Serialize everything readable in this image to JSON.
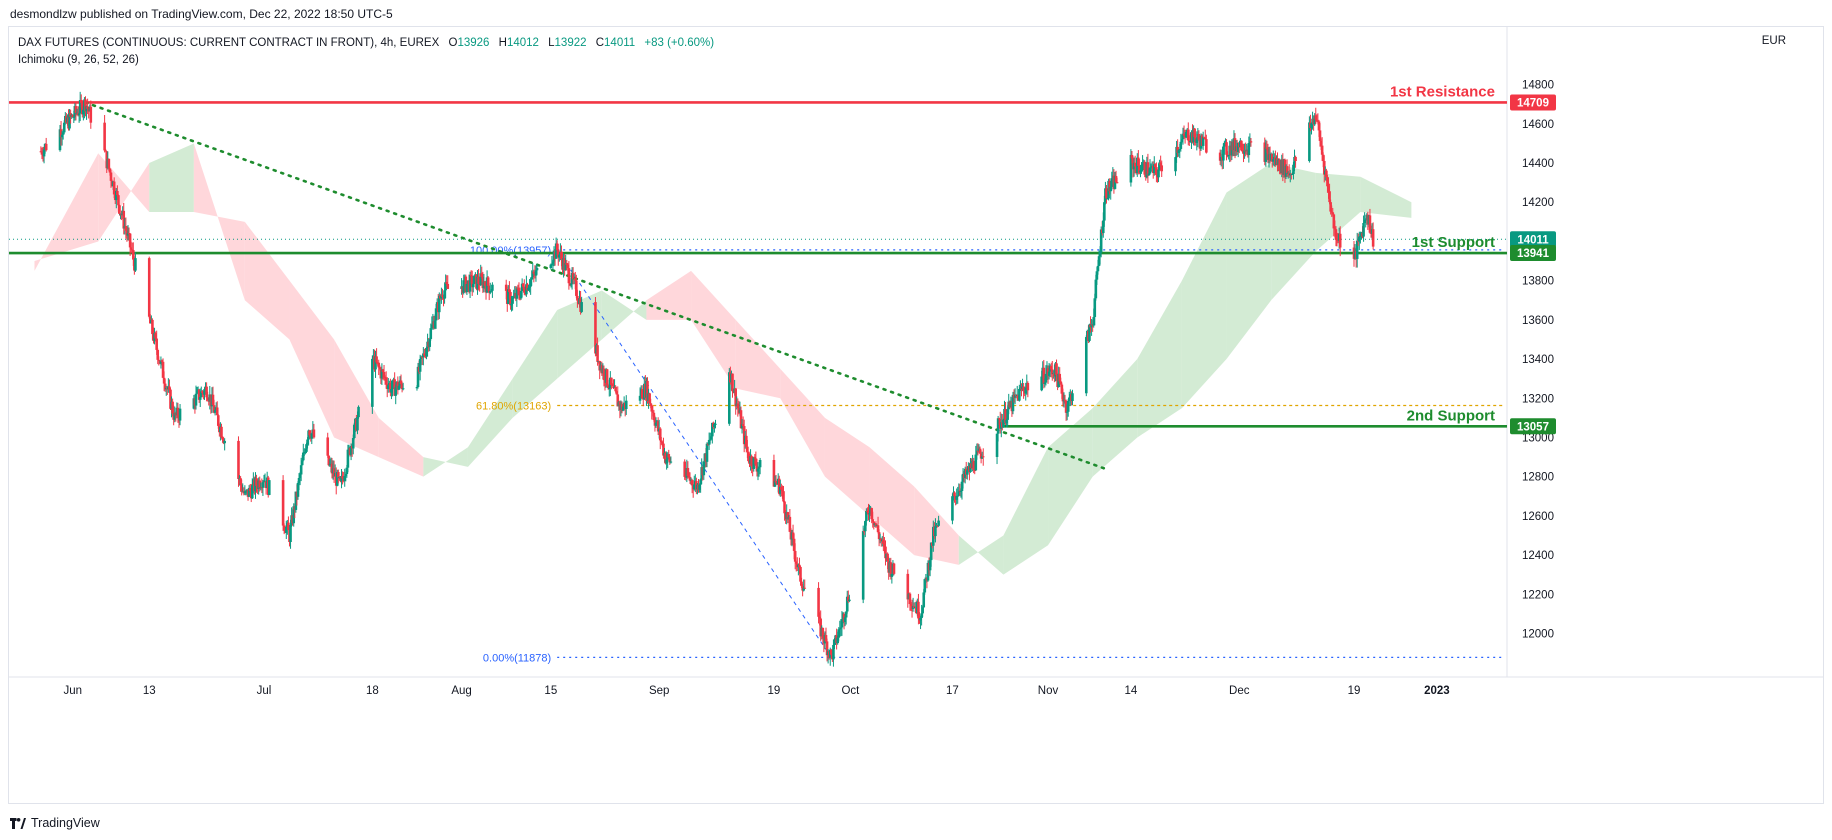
{
  "publisher": "desmondlzw published on TradingView.com, Dec 22, 2022 18:50 UTC-5",
  "legend": {
    "symbol": "DAX FUTURES (CONTINUOUS: CURRENT CONTRACT IN FRONT), 4h, EUREX",
    "open_label": "O",
    "open": "13926",
    "high_label": "H",
    "high": "14012",
    "low_label": "L",
    "low": "13922",
    "close_label": "C",
    "close": "14011",
    "change": "+83 (+0.60%)",
    "indicator": "Ichimoku (9, 26, 52, 26)"
  },
  "currency": "EUR",
  "footer": {
    "brand": "TradingView",
    "logo_icon": "tradingview-logo-icon"
  },
  "colors": {
    "resistance": "#f23645",
    "support": "#1e8c2e",
    "bull": "#089981",
    "bear": "#f23645",
    "cloud_bull": "#c8e6c9",
    "cloud_bear": "#ffcdd2",
    "fib": "#2962ff",
    "fib618": "#e0a500",
    "last_price": "#089981"
  },
  "chart_data": {
    "type": "line",
    "title": "DAX FUTURES (CONTINUOUS: CURRENT CONTRACT IN FRONT), 4h, EUREX",
    "xlabel": "",
    "ylabel": "",
    "ylim": [
      11880,
      14890
    ],
    "grid": false,
    "y_ticks": [
      12000,
      12200,
      12400,
      12600,
      12800,
      13000,
      13200,
      13400,
      13600,
      13800,
      14000,
      14200,
      14400,
      14600,
      14800
    ],
    "x_ticks": [
      "Jun",
      "13",
      "Jul",
      "18",
      "Aug",
      "15",
      "Sep",
      "19",
      "Oct",
      "17",
      "Nov",
      "14",
      "Dec",
      "19",
      "2023"
    ],
    "x_tick_dates": [
      "2022-06-01",
      "2022-06-13",
      "2022-07-01",
      "2022-07-18",
      "2022-08-01",
      "2022-08-15",
      "2022-09-01",
      "2022-09-19",
      "2022-10-01",
      "2022-10-17",
      "2022-11-01",
      "2022-11-14",
      "2022-12-01",
      "2022-12-19",
      "2023-01-01"
    ],
    "series": [
      {
        "name": "DAX FUTURES",
        "x": [
          "2022-05-27",
          "2022-06-03",
          "2022-06-06",
          "2022-06-09",
          "2022-06-13",
          "2022-06-17",
          "2022-06-22",
          "2022-06-28",
          "2022-07-01",
          "2022-07-05",
          "2022-07-08",
          "2022-07-13",
          "2022-07-18",
          "2022-07-21",
          "2022-07-25",
          "2022-07-29",
          "2022-08-04",
          "2022-08-09",
          "2022-08-16",
          "2022-08-19",
          "2022-08-23",
          "2022-08-26",
          "2022-08-30",
          "2022-09-02",
          "2022-09-07",
          "2022-09-12",
          "2022-09-15",
          "2022-09-20",
          "2022-09-23",
          "2022-09-28",
          "2022-09-30",
          "2022-10-04",
          "2022-10-07",
          "2022-10-12",
          "2022-10-14",
          "2022-10-19",
          "2022-10-24",
          "2022-10-28",
          "2022-11-02",
          "2022-11-04",
          "2022-11-08",
          "2022-11-10",
          "2022-11-14",
          "2022-11-18",
          "2022-11-23",
          "2022-11-28",
          "2022-12-01",
          "2022-12-05",
          "2022-12-09",
          "2022-12-13",
          "2022-12-16",
          "2022-12-19",
          "2022-12-21",
          "2022-12-22"
        ],
        "values": [
          14460,
          14709,
          14450,
          14100,
          13600,
          13100,
          13250,
          12700,
          12800,
          12500,
          13050,
          12750,
          13400,
          13250,
          13300,
          13750,
          13800,
          13700,
          13957,
          13750,
          13350,
          13150,
          13250,
          12900,
          12750,
          13350,
          12900,
          12750,
          12300,
          11878,
          12100,
          12650,
          12350,
          12100,
          12500,
          12800,
          13050,
          13250,
          13350,
          13150,
          13600,
          14250,
          14400,
          14350,
          14550,
          14450,
          14500,
          14450,
          14350,
          14650,
          14050,
          13900,
          14150,
          14011
        ]
      }
    ],
    "levels": [
      {
        "label": "1st Resistance",
        "value": 14709
      },
      {
        "label": "1st Support",
        "value": 13941
      },
      {
        "label": "2nd Support",
        "value": 13057
      }
    ],
    "last_price": 14011,
    "fibonacci": {
      "levels": [
        {
          "label": "100.00%(13957)",
          "value": 13957
        },
        {
          "label": "61.80%(13163)",
          "value": 13163
        },
        {
          "label": "0.00%(11878)",
          "value": 11878
        }
      ]
    },
    "trendline": {
      "from": [
        "2022-06-03",
        14709
      ],
      "to": [
        "2022-11-10",
        12840
      ]
    },
    "ichimoku": {
      "x": [
        "2022-05-26",
        "2022-06-05",
        "2022-06-13",
        "2022-06-20",
        "2022-06-28",
        "2022-07-05",
        "2022-07-12",
        "2022-07-19",
        "2022-07-26",
        "2022-08-02",
        "2022-08-09",
        "2022-08-16",
        "2022-08-23",
        "2022-08-30",
        "2022-09-06",
        "2022-09-13",
        "2022-09-20",
        "2022-09-27",
        "2022-10-04",
        "2022-10-11",
        "2022-10-18",
        "2022-10-25",
        "2022-11-01",
        "2022-11-08",
        "2022-11-15",
        "2022-11-22",
        "2022-11-29",
        "2022-12-06",
        "2022-12-13",
        "2022-12-20",
        "2022-12-28"
      ],
      "span_a": [
        13900,
        14000,
        14400,
        14500,
        13700,
        13500,
        13000,
        12900,
        12800,
        12950,
        13300,
        13650,
        13750,
        13600,
        13600,
        13250,
        13200,
        12800,
        12600,
        12400,
        12350,
        12500,
        12950,
        13150,
        13400,
        13800,
        14250,
        14400,
        14350,
        14330,
        14200
      ],
      "span_b": [
        13850,
        14450,
        14150,
        14150,
        14100,
        13800,
        13500,
        13100,
        12900,
        12850,
        13100,
        13300,
        13500,
        13700,
        13850,
        13600,
        13350,
        13100,
        12950,
        12750,
        12500,
        12300,
        12450,
        12800,
        13000,
        13150,
        13400,
        13700,
        13950,
        14150,
        14120
      ]
    }
  }
}
